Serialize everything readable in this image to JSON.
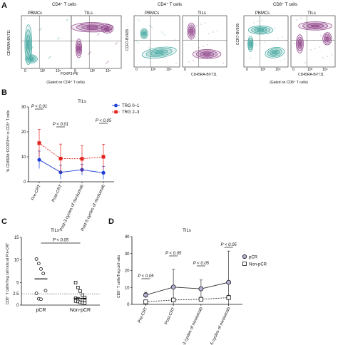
{
  "panel_labels": [
    "A",
    "B",
    "C",
    "D"
  ],
  "panel_a": {
    "groups": [
      {
        "title": "CD4⁺ T cells",
        "ylabel": "CD45RA-BV711",
        "xlabel": "FOXP3-PE",
        "gate_note": "(Gated on CD4⁺ T cells)",
        "plots": [
          {
            "name": "PBMCs",
            "color": "#3aa39c"
          },
          {
            "name": "TILs",
            "color": "#8a3a84"
          }
        ]
      },
      {
        "title": "CD4⁺ T cells",
        "ylabel": "CCR7-BV605",
        "xlabel": "CD45RA-BV711",
        "gate_note": "",
        "plots": [
          {
            "name": "PBMCs",
            "color": "#3aa39c"
          },
          {
            "name": "TILs",
            "color": "#8a3a84"
          }
        ]
      },
      {
        "title": "CD8⁺ T cells",
        "ylabel": "CCR7-BV605",
        "xlabel": "CD45RA-BV711",
        "gate_note": "(Gated on CD8⁺ T cells)",
        "plots": [
          {
            "name": "PBMCs",
            "color": "#3aa39c"
          },
          {
            "name": "TILs",
            "color": "#8a3a84"
          }
        ]
      }
    ],
    "ticks": [
      "0",
      "10³",
      "10⁴"
    ]
  },
  "chart_data": [
    {
      "panel": "B",
      "type": "line",
      "title": "TILs",
      "ylabel": "% CD45RA⁻FOXP3ʰⁱᵍʰ in CD3⁺ T cells",
      "categories": [
        "Pre-CRT",
        "Post-CRT",
        "Post-3 cycles of nivolumab",
        "Post-5 cycles of nivolumab"
      ],
      "ylim": [
        0,
        30
      ],
      "yticks": [
        0,
        10,
        20,
        30
      ],
      "series": [
        {
          "name": "TRG 0–1",
          "color": "#1f3fd6",
          "values": [
            8.8,
            3.8,
            4.8,
            3.6
          ],
          "err": [
            3.5,
            2.8,
            2.2,
            2.6
          ]
        },
        {
          "name": "TRG 2–3",
          "color": "#e0231c",
          "values": [
            15.5,
            9.3,
            9.2,
            10.0
          ],
          "err": [
            5.5,
            5.8,
            5.2,
            5.0
          ]
        }
      ],
      "legend_position": "top-right",
      "annotations": [
        {
          "text": "P < 0.01",
          "from": 0,
          "to": 0
        },
        {
          "text": "P < 0.01",
          "from": 1,
          "to": 1
        },
        {
          "text": "P < 0.05",
          "from": 3,
          "to": 3
        }
      ]
    },
    {
      "panel": "C",
      "type": "scatter",
      "title": "TILs",
      "ylabel": "CD8⁺ T cell/eTreg cell ratio at Pre-CRT",
      "categories": [
        "pCR",
        "Non-pCR"
      ],
      "ylim": [
        0,
        15
      ],
      "yticks": [
        0,
        5,
        10,
        15
      ],
      "reference_line": 2.5,
      "reference_label": "2.5",
      "groups": [
        {
          "name": "pCR",
          "marker": "circle",
          "mean": 5.8,
          "values": [
            10.2,
            9.2,
            8.0,
            7.0,
            3.2,
            2.6,
            1.4,
            1.3
          ]
        },
        {
          "name": "Non-pCR",
          "marker": "square",
          "mean": 1.5,
          "values": [
            5.0,
            3.9,
            3.1,
            2.2,
            1.7,
            1.5,
            1.4,
            1.2,
            1.1,
            1.0,
            0.9,
            0.8,
            0.6,
            0.5,
            0.4
          ]
        }
      ],
      "annotations": [
        {
          "text": "P < 0.05",
          "from": 0,
          "to": 1
        }
      ]
    },
    {
      "panel": "D",
      "type": "line",
      "title": "TILs",
      "ylabel": "CD8⁺ T cell/eTreg cell ratio",
      "categories": [
        "Pre-CRT",
        "Post-CRT",
        "Post-3 cycles of nivolumab",
        "Post-5 cycles of nivolumab"
      ],
      "ylim": [
        0,
        40
      ],
      "yticks": [
        0,
        10,
        20,
        30,
        40
      ],
      "series": [
        {
          "name": "pCR",
          "marker": "circle",
          "line": "solid",
          "values": [
            5.5,
            10.2,
            9.2,
            13.0
          ],
          "err": [
            1.6,
            10.5,
            5.2,
            18.5
          ]
        },
        {
          "name": "Non-pCR",
          "marker": "square",
          "line": "dashed",
          "values": [
            1.5,
            2.6,
            3.0,
            4.0
          ],
          "err": [
            0.6,
            1.0,
            1.2,
            1.4
          ]
        }
      ],
      "legend_position": "right",
      "annotations": [
        {
          "text": "P < 0.05",
          "from": 0,
          "to": 0
        },
        {
          "text": "P < 0.05",
          "from": 1,
          "to": 1
        },
        {
          "text": "P < 0.05",
          "from": 2,
          "to": 2
        },
        {
          "text": "P < 0.05",
          "from": 3,
          "to": 3
        }
      ]
    }
  ]
}
